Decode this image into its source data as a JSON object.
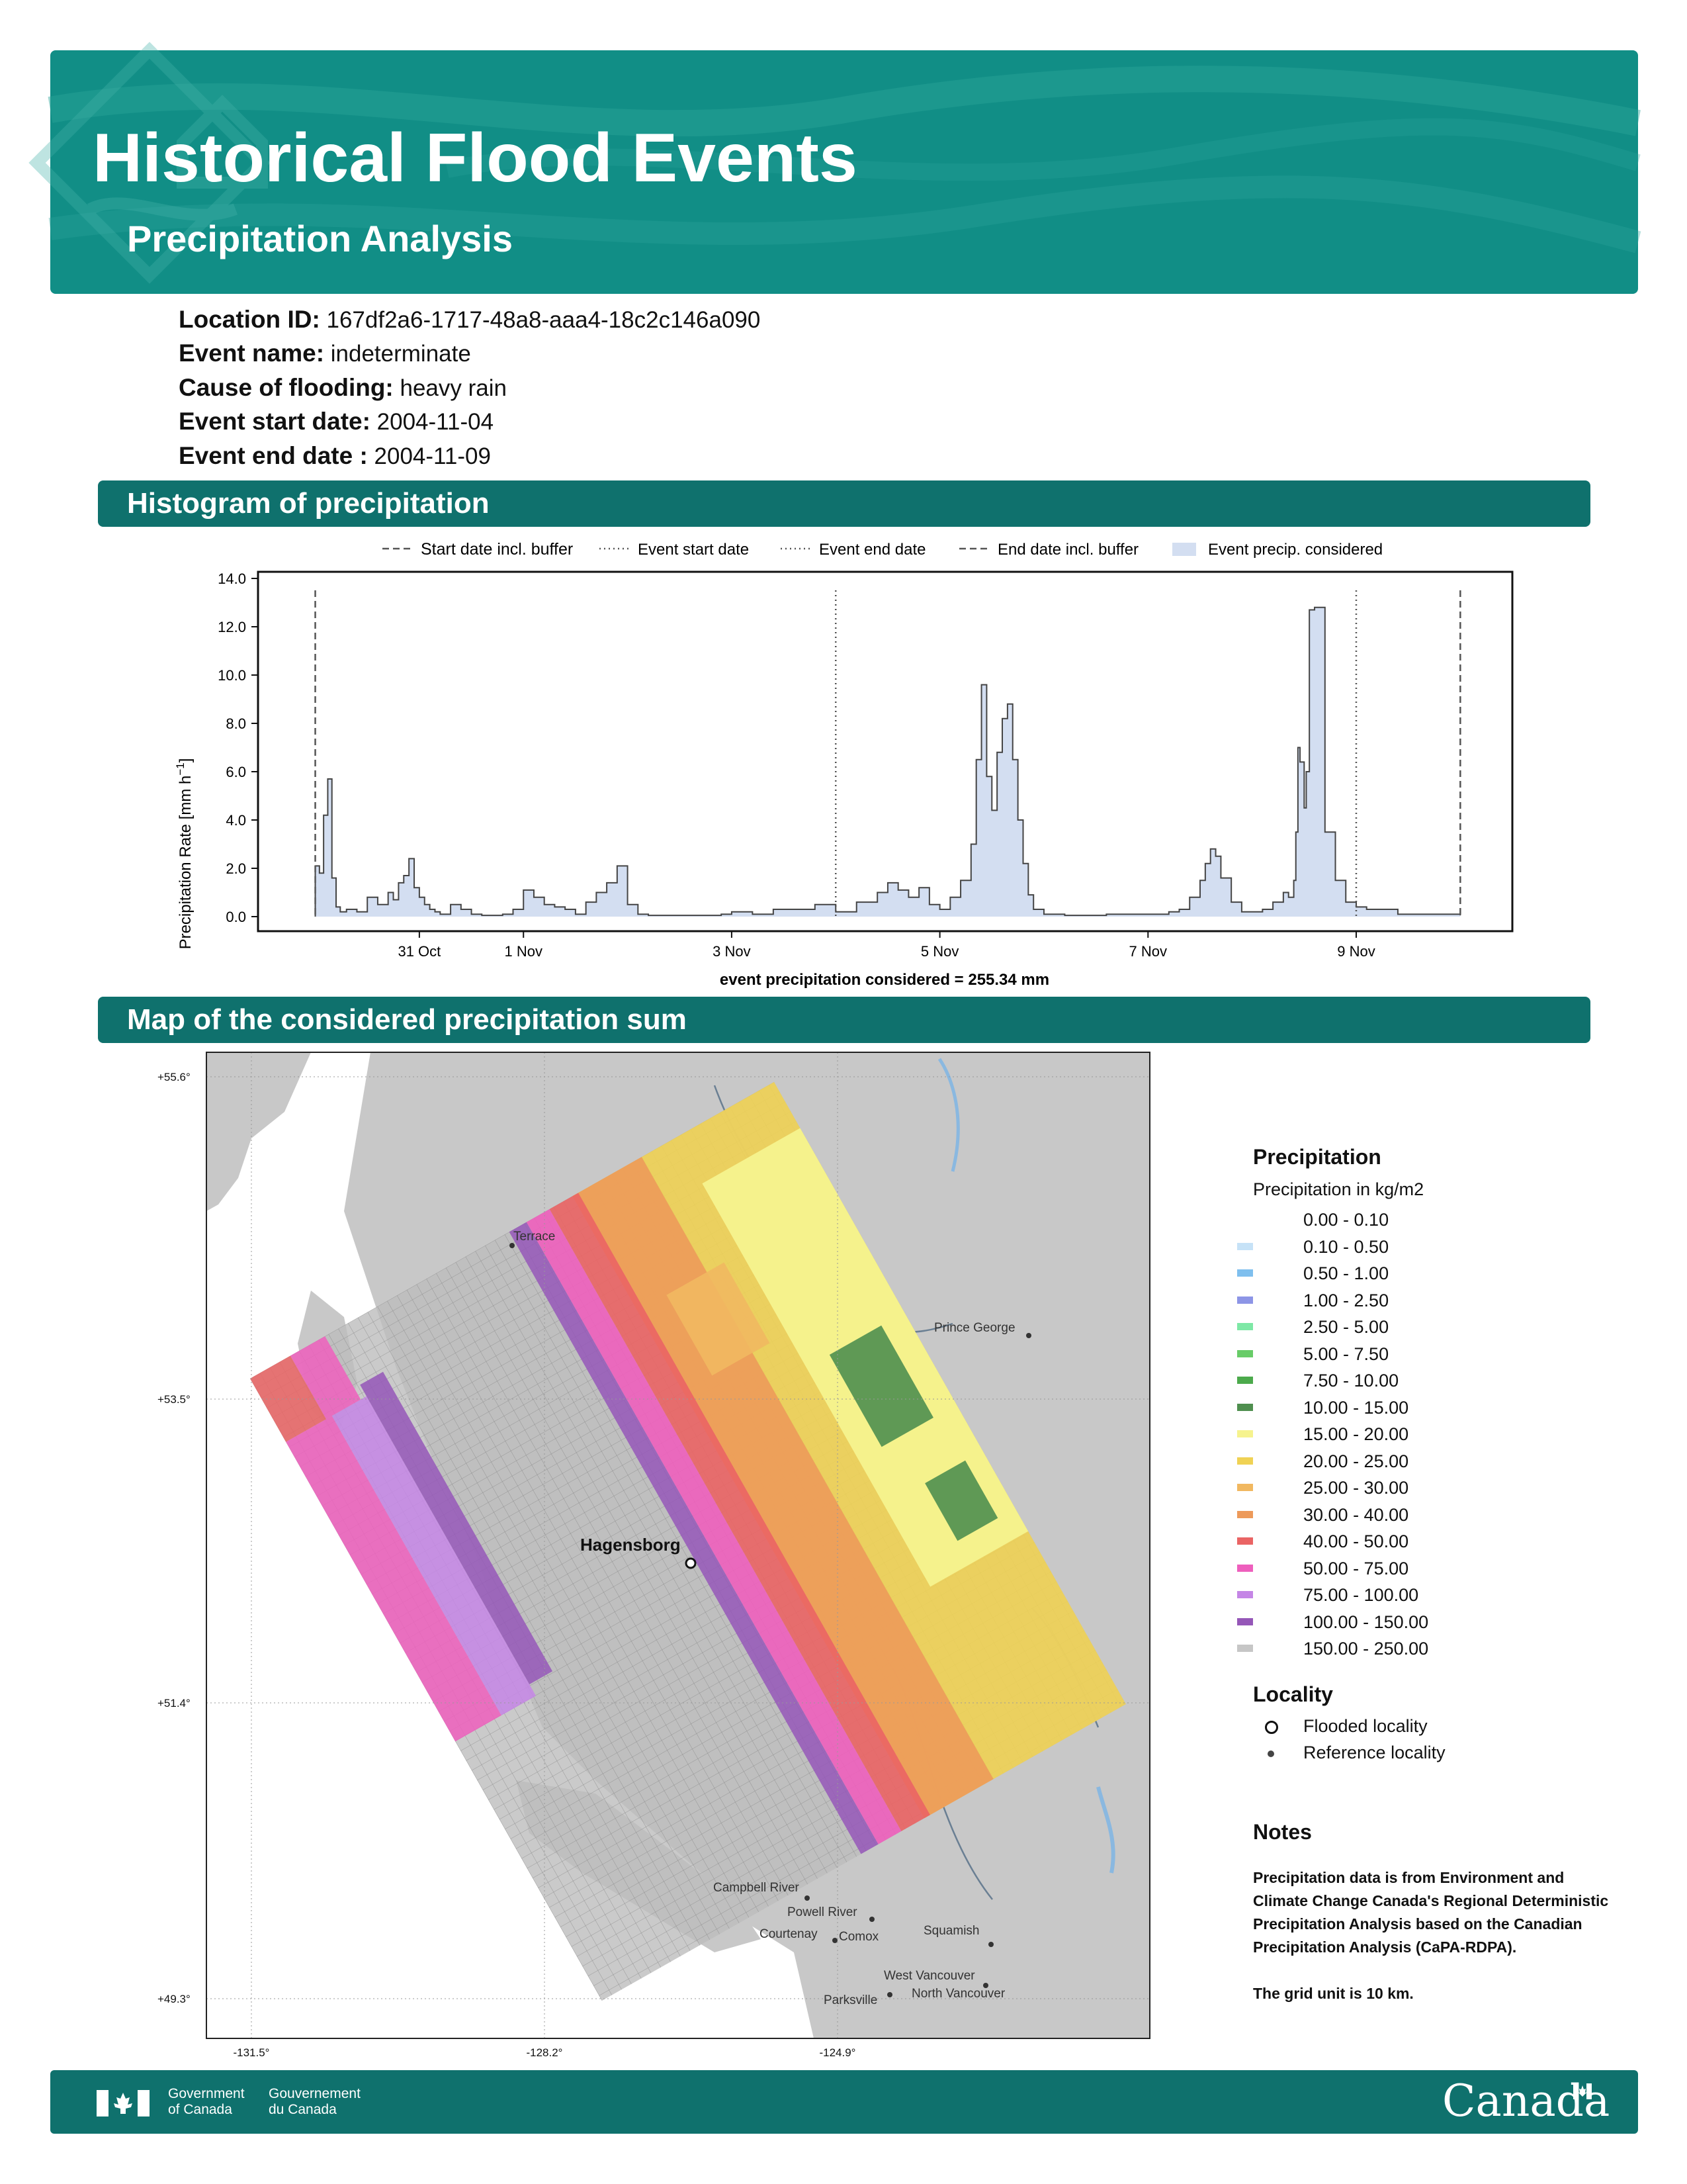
{
  "header": {
    "title": "Historical Flood Events",
    "subtitle": "Precipitation Analysis"
  },
  "event": {
    "location_id_label": "Location ID:",
    "location_id": "167df2a6-1717-48a8-aaa4-18c2c146a090",
    "name_label": "Event name:",
    "name": "indeterminate",
    "cause_label": "Cause of flooding:",
    "cause": "heavy rain",
    "start_label": "Event start date:",
    "start": "2004-11-04",
    "end_label": "Event end date :",
    "end": "2004-11-09"
  },
  "sections": {
    "histogram": "Histogram of precipitation",
    "map": "Map of the considered precipitation sum"
  },
  "chart_data": {
    "type": "area",
    "ylabel": "Precipitation Rate [mm h",
    "ylabel_sup": "−1",
    "ylabel_end": "]",
    "ylim": [
      0,
      14
    ],
    "y_ticks": [
      "0.0",
      "2.0",
      "4.0",
      "6.0",
      "8.0",
      "10.0",
      "12.0",
      "14.0"
    ],
    "x_ticks": [
      "31 Oct",
      "1 Nov",
      "3 Nov",
      "5 Nov",
      "7 Nov",
      "9 Nov"
    ],
    "x_tick_days": [
      -4,
      -3,
      -1,
      1,
      3,
      5
    ],
    "legend": [
      "Start date incl. buffer",
      "Event start date",
      "Event end date",
      "End date incl. buffer",
      "Event precip. considered"
    ],
    "markers_days": {
      "start_buffer": -5,
      "event_start": 0,
      "event_end": 5,
      "end_buffer": 6
    },
    "xlim_days": [
      -5.55,
      6.5
    ],
    "series_days": [
      -5,
      -4.96,
      -4.92,
      -4.88,
      -4.84,
      -4.8,
      -4.76,
      -4.7,
      -4.6,
      -4.5,
      -4.4,
      -4.3,
      -4.25,
      -4.2,
      -4.15,
      -4.1,
      -4.05,
      -4,
      -3.95,
      -3.9,
      -3.85,
      -3.8,
      -3.7,
      -3.6,
      -3.5,
      -3.4,
      -3.3,
      -3.2,
      -3.1,
      -3.0,
      -2.9,
      -2.8,
      -2.7,
      -2.6,
      -2.5,
      -2.4,
      -2.3,
      -2.2,
      -2.1,
      -2.0,
      -1.9,
      -1.8,
      -1.7,
      -1.6,
      -1.5,
      -1.4,
      -1.3,
      -1.2,
      -1.1,
      -1.0,
      -0.9,
      -0.8,
      -0.6,
      -0.4,
      -0.2,
      0.0,
      0.2,
      0.4,
      0.5,
      0.6,
      0.7,
      0.8,
      0.9,
      1.0,
      1.1,
      1.2,
      1.3,
      1.35,
      1.4,
      1.45,
      1.5,
      1.55,
      1.6,
      1.65,
      1.7,
      1.75,
      1.8,
      1.85,
      1.9,
      2.0,
      2.2,
      2.4,
      2.6,
      2.8,
      3.0,
      3.2,
      3.3,
      3.4,
      3.5,
      3.55,
      3.6,
      3.65,
      3.7,
      3.8,
      3.9,
      4.0,
      4.1,
      4.2,
      4.3,
      4.35,
      4.4,
      4.42,
      4.44,
      4.46,
      4.5,
      4.52,
      4.55,
      4.6,
      4.7,
      4.8,
      4.9,
      5.0,
      5.1,
      5.2,
      5.4,
      6.0
    ],
    "series_values": [
      2.1,
      1.8,
      4.2,
      5.7,
      1.6,
      0.4,
      0.2,
      0.3,
      0.2,
      0.8,
      0.5,
      1.0,
      0.7,
      1.4,
      1.7,
      2.4,
      1.2,
      0.8,
      0.5,
      0.3,
      0.2,
      0.1,
      0.5,
      0.3,
      0.1,
      0.05,
      0.05,
      0.1,
      0.3,
      1.1,
      0.8,
      0.5,
      0.4,
      0.3,
      0.1,
      0.6,
      1.0,
      1.4,
      2.1,
      0.5,
      0.1,
      0.05,
      0.05,
      0.05,
      0.05,
      0.05,
      0.05,
      0.05,
      0.1,
      0.2,
      0.2,
      0.1,
      0.3,
      0.3,
      0.5,
      0.2,
      0.6,
      1.0,
      1.4,
      1.1,
      0.8,
      1.2,
      0.5,
      0.3,
      0.8,
      1.5,
      3.0,
      6.5,
      9.6,
      5.8,
      4.4,
      6.8,
      8.2,
      8.8,
      6.5,
      4.0,
      2.2,
      0.9,
      0.3,
      0.1,
      0.05,
      0.05,
      0.1,
      0.1,
      0.1,
      0.2,
      0.3,
      0.8,
      1.5,
      2.2,
      2.8,
      2.5,
      1.6,
      0.6,
      0.2,
      0.2,
      0.3,
      0.6,
      1.0,
      0.8,
      1.5,
      3.5,
      7.0,
      6.4,
      4.5,
      6.0,
      12.7,
      12.8,
      3.5,
      1.5,
      0.6,
      0.4,
      0.3,
      0.3,
      0.1,
      0.05
    ],
    "total_label": "event precipitation considered = 255.34 mm"
  },
  "map": {
    "lat_ticks": [
      "+55.6°",
      "+53.5°",
      "+51.4°",
      "+49.3°"
    ],
    "lon_ticks": [
      "-131.5°",
      "-128.2°",
      "-124.9°"
    ],
    "places": [
      "Terrace",
      "Prince George",
      "Hagensborg",
      "Campbell River",
      "Powell River",
      "Courtenay",
      "Comox",
      "Squamish",
      "West Vancouver",
      "North Vancouver",
      "Parksville"
    ],
    "colors": {
      "land": "#c8c8c8",
      "water": "#ffffff",
      "river": "#8ab8e0"
    }
  },
  "legend": {
    "title": "Precipitation",
    "subtitle": "Precipitation in kg/m2",
    "items": [
      {
        "label": "0.00 - 0.10",
        "color": "#ffffff"
      },
      {
        "label": "0.10 - 0.50",
        "color": "#c6e2f7"
      },
      {
        "label": "0.50 - 1.00",
        "color": "#7fbfee"
      },
      {
        "label": "1.00 - 2.50",
        "color": "#8d95e6"
      },
      {
        "label": "2.50 - 5.00",
        "color": "#7ee8a6"
      },
      {
        "label": "5.00 - 7.50",
        "color": "#68cc68"
      },
      {
        "label": "7.50 - 10.00",
        "color": "#4caa4c"
      },
      {
        "label": "10.00 - 15.00",
        "color": "#4f8f4f"
      },
      {
        "label": "15.00 - 20.00",
        "color": "#f6f38e"
      },
      {
        "label": "20.00 - 25.00",
        "color": "#f0d254"
      },
      {
        "label": "25.00 - 30.00",
        "color": "#f1b860"
      },
      {
        "label": "30.00 - 40.00",
        "color": "#ed9a5a"
      },
      {
        "label": "40.00 - 50.00",
        "color": "#ea6464"
      },
      {
        "label": "50.00 - 75.00",
        "color": "#ee5fbd"
      },
      {
        "label": "75.00 - 100.00",
        "color": "#c586e6"
      },
      {
        "label": "100.00 - 150.00",
        "color": "#9557b8"
      },
      {
        "label": "150.00 - 250.00",
        "color": "#c6c6c6"
      }
    ],
    "locality_title": "Locality",
    "flooded": "Flooded locality",
    "reference": "Reference locality"
  },
  "notes": {
    "title": "Notes",
    "text": "Precipitation data is from Environment and Climate Change Canada's Regional Deterministic Precipitation Analysis based on the Canadian Precipitation Analysis (CaPA-RDPA).",
    "grid": "The grid unit is 10 km."
  },
  "footer": {
    "gov_en_1": "Government",
    "gov_en_2": "of Canada",
    "gov_fr_1": "Gouvernement",
    "gov_fr_2": "du Canada",
    "wordmark": "Canada"
  }
}
